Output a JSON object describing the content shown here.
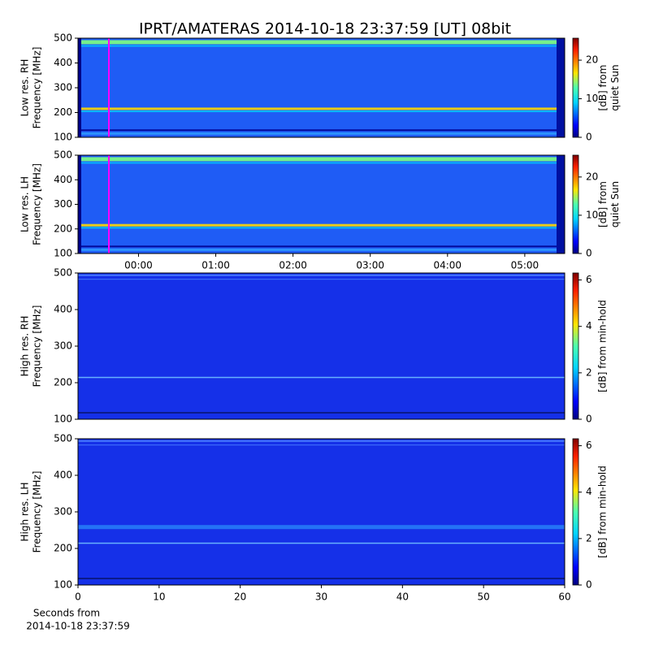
{
  "chart_data": [
    {
      "type": "heatmap",
      "title": "IPRT/AMATERAS 2014-10-18 23:37:59 [UT]   08bit",
      "ylabel": [
        "Low res. RH",
        "Frequency [MHz]"
      ],
      "ylim": [
        100,
        500
      ],
      "yticks": [
        100,
        200,
        300,
        400,
        500
      ],
      "xlim": [
        -47,
        331
      ],
      "colormap": "jet",
      "colorbar": {
        "label": [
          "[dB] from",
          "quiet Sun"
        ],
        "lim": [
          0,
          25.7
        ],
        "ticks": [
          0,
          10,
          20
        ]
      }
    },
    {
      "type": "heatmap",
      "ylabel": [
        "Low res. LH",
        "Frequency [MHz]"
      ],
      "ylim": [
        100,
        500
      ],
      "yticks": [
        100,
        200,
        300,
        400,
        500
      ],
      "xlim": [
        -47,
        331
      ],
      "xticks": [
        {
          "value": 0,
          "label": "00:00"
        },
        {
          "value": 60,
          "label": "01:00"
        },
        {
          "value": 120,
          "label": "02:00"
        },
        {
          "value": 180,
          "label": "03:00"
        },
        {
          "value": 240,
          "label": "04:00"
        },
        {
          "value": 300,
          "label": "05:00"
        }
      ],
      "colormap": "jet",
      "colorbar": {
        "label": [
          "[dB] from",
          "quiet Sun"
        ],
        "lim": [
          0,
          25.7
        ],
        "ticks": [
          0,
          10,
          20
        ]
      }
    },
    {
      "type": "heatmap",
      "ylabel": [
        "High res. RH",
        "Frequency [MHz]"
      ],
      "ylim": [
        100,
        500
      ],
      "yticks": [
        100,
        200,
        300,
        400,
        500
      ],
      "xlim": [
        0,
        60
      ],
      "colormap": "jet",
      "colorbar": {
        "label": [
          "[dB] from min-hold"
        ],
        "lim": [
          0,
          6.3
        ],
        "ticks": [
          0,
          2,
          4,
          6
        ]
      }
    },
    {
      "type": "heatmap",
      "ylabel": [
        "High res. LH",
        "Frequency [MHz]"
      ],
      "ylim": [
        100,
        500
      ],
      "yticks": [
        100,
        200,
        300,
        400,
        500
      ],
      "xlim": [
        0,
        60
      ],
      "xticks": [
        0,
        10,
        20,
        30,
        40,
        50,
        60
      ],
      "xlabel": [
        "Seconds from",
        "2014-10-18 23:37:59"
      ],
      "colormap": "jet",
      "colorbar": {
        "label": [
          "[dB] from min-hold"
        ],
        "lim": [
          0,
          6.3
        ],
        "ticks": [
          0,
          2,
          4,
          6
        ]
      }
    }
  ]
}
